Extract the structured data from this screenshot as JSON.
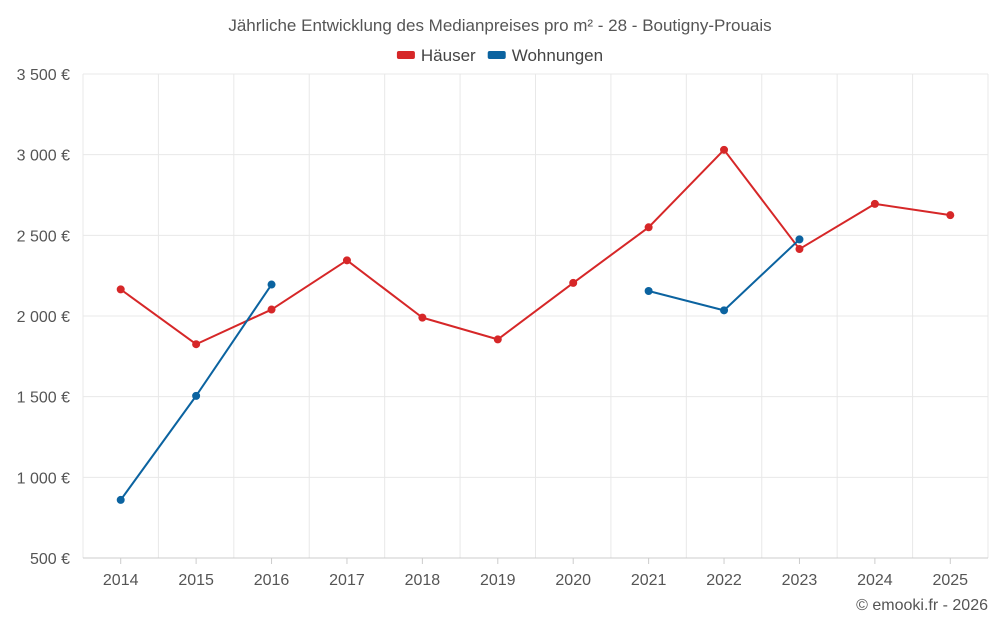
{
  "chart_data": {
    "type": "line",
    "title": "Jährliche Entwicklung des Medianpreises pro m² - 28 - Boutigny-Prouais",
    "x": [
      "2014",
      "2015",
      "2016",
      "2017",
      "2018",
      "2019",
      "2020",
      "2021",
      "2022",
      "2023",
      "2024",
      "2025"
    ],
    "y_ticks": [
      "500 €",
      "1 000 €",
      "1 500 €",
      "2 000 €",
      "2 500 €",
      "3 000 €",
      "3 500 €"
    ],
    "ylim": [
      500,
      3500
    ],
    "xlabel": "",
    "ylabel": "",
    "legend_position": "top-center",
    "series": [
      {
        "name": "Häuser",
        "color": "#d62728",
        "values": [
          2165,
          1825,
          2040,
          2345,
          1990,
          1855,
          2205,
          2550,
          3030,
          2415,
          2695,
          2625
        ]
      },
      {
        "name": "Wohnungen",
        "color": "#0b63a0",
        "values": [
          860,
          1505,
          2195,
          null,
          null,
          null,
          null,
          2155,
          2035,
          2475,
          null,
          null
        ]
      }
    ]
  },
  "credit": "© emooki.fr - 2026"
}
